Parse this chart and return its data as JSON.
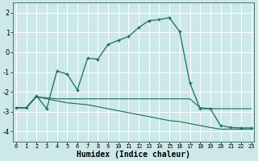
{
  "xlabel": "Humidex (Indice chaleur)",
  "background_color": "#cce8e8",
  "grid_color": "#b0d8d8",
  "line_color": "#1a6b5a",
  "x_ticks": [
    0,
    1,
    2,
    3,
    4,
    5,
    6,
    7,
    8,
    9,
    10,
    11,
    12,
    13,
    14,
    15,
    16,
    17,
    18,
    19,
    20,
    21,
    22,
    23
  ],
  "ylim": [
    -4.5,
    2.5
  ],
  "xlim": [
    -0.3,
    23.3
  ],
  "yticks": [
    -4,
    -3,
    -2,
    -1,
    0,
    1,
    2
  ],
  "line1_x": [
    0,
    1,
    2,
    3,
    4,
    5,
    6,
    7,
    8,
    9,
    10,
    11,
    12,
    13,
    14,
    15,
    16,
    17,
    18,
    19,
    20,
    21,
    22,
    23
  ],
  "line1_y": [
    -2.8,
    -2.8,
    -2.2,
    -2.85,
    -0.95,
    -1.1,
    -1.9,
    -0.3,
    -0.35,
    0.4,
    0.6,
    0.8,
    1.25,
    1.6,
    1.65,
    1.75,
    1.05,
    -1.55,
    -2.85,
    -2.85,
    -3.7,
    -3.8,
    -3.82,
    -3.82
  ],
  "line2_x": [
    0,
    1,
    2,
    3,
    4,
    5,
    6,
    7,
    8,
    9,
    10,
    11,
    12,
    13,
    14,
    15,
    16,
    17,
    18,
    19,
    20,
    21,
    22,
    23
  ],
  "line2_y": [
    -2.8,
    -2.8,
    -2.25,
    -2.3,
    -2.35,
    -2.35,
    -2.35,
    -2.35,
    -2.35,
    -2.35,
    -2.35,
    -2.35,
    -2.35,
    -2.35,
    -2.35,
    -2.35,
    -2.35,
    -2.35,
    -2.8,
    -2.85,
    -2.85,
    -2.85,
    -2.85,
    -2.85
  ],
  "line3_x": [
    0,
    1,
    2,
    3,
    4,
    5,
    6,
    7,
    8,
    9,
    10,
    11,
    12,
    13,
    14,
    15,
    16,
    17,
    18,
    19,
    20,
    21,
    22,
    23
  ],
  "line3_y": [
    -2.8,
    -2.8,
    -2.25,
    -2.35,
    -2.45,
    -2.55,
    -2.6,
    -2.65,
    -2.75,
    -2.85,
    -2.95,
    -3.05,
    -3.15,
    -3.25,
    -3.35,
    -3.45,
    -3.5,
    -3.6,
    -3.7,
    -3.8,
    -3.88,
    -3.88,
    -3.88,
    -3.88
  ]
}
